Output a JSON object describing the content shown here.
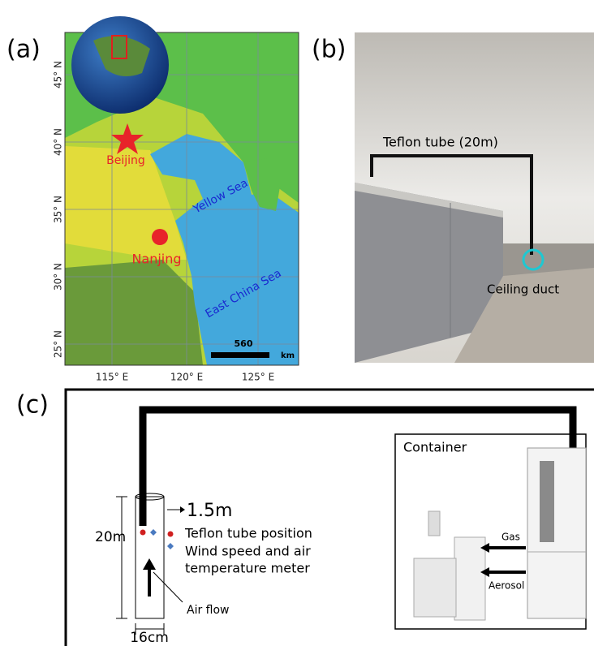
{
  "panel_a": {
    "label": "(a)",
    "lat_labels": [
      "45° N",
      "40° N",
      "35° N",
      "30° N",
      "25° N"
    ],
    "lon_labels": [
      "115° E",
      "120° E",
      "125° E"
    ],
    "places": {
      "beijing": "Beijing",
      "nanjing": "Nanjing",
      "yellow_sea": "Yellow Sea",
      "east_china_sea": "East China Sea"
    },
    "scale": {
      "distance": "560",
      "unit": "km"
    }
  },
  "panel_b": {
    "label": "(b)",
    "tube": "Teflon tube (20m)",
    "duct": "Ceiling duct"
  },
  "panel_c": {
    "label": "(c)",
    "container": "Container",
    "height_offset": "1.5m",
    "legend": {
      "tube_position": "Teflon tube position",
      "meter_line1": "Wind speed and air",
      "meter_line2": "temperature meter"
    },
    "tower_height": "20m",
    "tower_width": "16cm",
    "air_flow": "Air flow",
    "gas": "Gas",
    "aerosol": "Aerosol"
  }
}
